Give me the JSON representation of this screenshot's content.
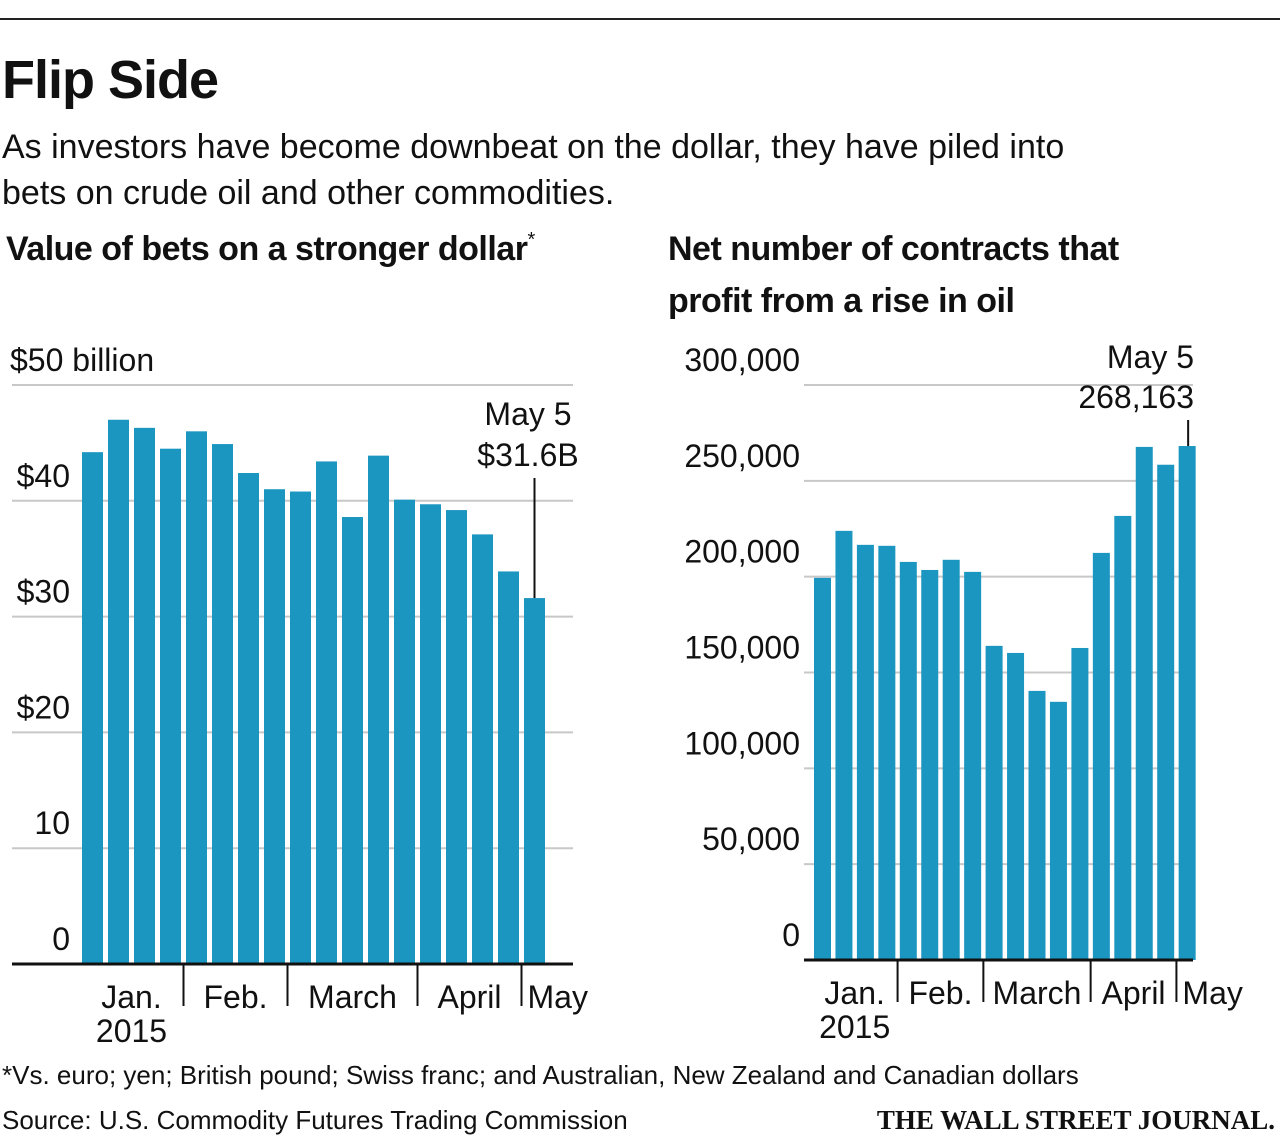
{
  "title": "Flip Side",
  "subtitle": [
    "As investors have become downbeat on the dollar, they have piled into",
    "bets on crude oil and other commodities."
  ],
  "chart_data": [
    {
      "type": "bar",
      "title": [
        "Value of bets on a stronger dollar"
      ],
      "title_mark": "*",
      "categories": [
        "Jan.",
        null,
        null,
        null,
        "Feb.",
        null,
        null,
        null,
        "March",
        null,
        null,
        null,
        null,
        "April",
        null,
        null,
        null,
        "May"
      ],
      "year_label": "2015",
      "values": [
        44.2,
        47.0,
        46.3,
        44.5,
        46.0,
        44.9,
        42.4,
        41.0,
        40.8,
        43.4,
        38.6,
        43.9,
        40.1,
        39.7,
        39.2,
        37.1,
        33.9,
        31.6
      ],
      "color": "#1b96c0",
      "ylim": [
        0,
        50
      ],
      "yticks": [
        0,
        10,
        {
          "value": 20,
          "label": "$20"
        },
        {
          "value": 30,
          "label": "$30"
        },
        {
          "value": 40,
          "label": "$40"
        },
        {
          "value": 50,
          "label": "$50 billion"
        }
      ],
      "grid": true,
      "annotation": {
        "date": "May 5",
        "text": "$31.6B"
      }
    },
    {
      "type": "bar",
      "title": [
        "Net number of contracts that",
        "profit from a rise in oil"
      ],
      "categories": [
        "Jan.",
        null,
        null,
        null,
        "Feb.",
        null,
        null,
        null,
        "March",
        null,
        null,
        null,
        null,
        "April",
        null,
        null,
        null,
        "May"
      ],
      "year_label": "2015",
      "values": [
        199400,
        223900,
        216600,
        216100,
        207700,
        203500,
        208800,
        202500,
        163900,
        160200,
        140400,
        134700,
        162800,
        212400,
        231700,
        267700,
        258400,
        268163
      ],
      "color": "#1b96c0",
      "ylim": [
        0,
        300000
      ],
      "yticks": [
        0,
        {
          "value": 50000,
          "label": "50,000"
        },
        {
          "value": 100000,
          "label": "100,000"
        },
        {
          "value": 150000,
          "label": "150,000"
        },
        {
          "value": 200000,
          "label": "200,000"
        },
        {
          "value": 250000,
          "label": "250,000"
        },
        {
          "value": 300000,
          "label": "300,000"
        }
      ],
      "grid": true,
      "annotation": {
        "date": "May 5",
        "text": "268,163"
      }
    }
  ],
  "footnote": "*Vs. euro; yen; British pound; Swiss franc; and Australian, New Zealand and Canadian dollars",
  "source": "Source: U.S. Commodity Futures Trading Commission",
  "credit": "THE WALL STREET JOURNAL."
}
